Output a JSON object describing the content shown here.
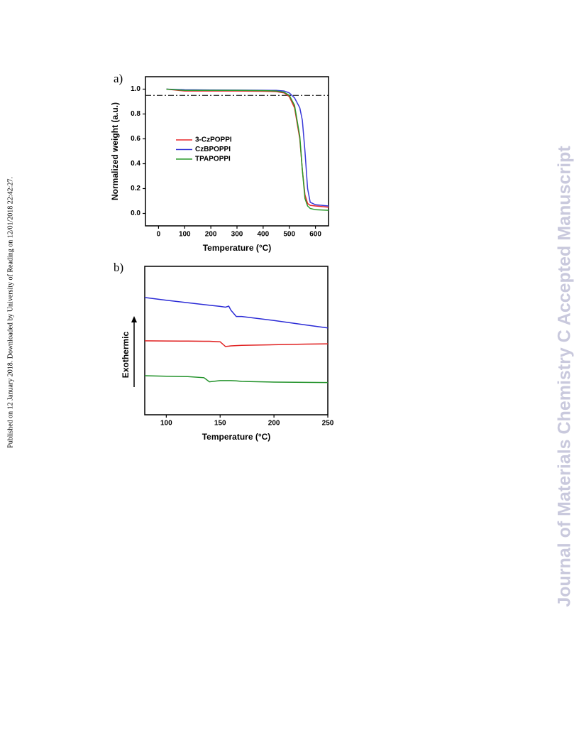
{
  "side_note": "Published on 12 January 2018. Downloaded by University of Reading on 12/01/2018 22:42:27.",
  "watermark": "Journal of Materials Chemistry C Accepted Manuscript",
  "chart_data": [
    {
      "type": "line",
      "panel": "a)",
      "x_label": "Temperature (°C)",
      "y_label": "Normalized weight (a.u.)",
      "xlim": [
        -50,
        650
      ],
      "xticks": [
        0,
        100,
        200,
        300,
        400,
        500,
        600
      ],
      "ylim": [
        -0.1,
        1.1
      ],
      "yticks": [
        {
          "value": 0,
          "label": "0.0"
        },
        {
          "value": 0.2,
          "label": "0.2"
        },
        {
          "value": 0.4,
          "label": "0.4"
        },
        {
          "value": 0.6,
          "label": "0.6"
        },
        {
          "value": 0.8,
          "label": "0.8"
        },
        {
          "value": 1,
          "label": "1.0"
        }
      ],
      "hline": 0.95,
      "x": [
        30,
        100,
        200,
        300,
        400,
        450,
        480,
        500,
        520,
        540,
        550,
        560,
        570,
        580,
        600,
        650
      ],
      "series": [
        {
          "name": "3-CzPOPPI",
          "color": "#e8262a",
          "values": [
            1.0,
            0.985,
            0.985,
            0.985,
            0.983,
            0.98,
            0.97,
            0.94,
            0.85,
            0.6,
            0.35,
            0.15,
            0.08,
            0.065,
            0.06,
            0.05
          ]
        },
        {
          "name": "CzBPOPPI",
          "color": "#3a3ad8",
          "values": [
            1.0,
            0.995,
            0.993,
            0.992,
            0.991,
            0.99,
            0.985,
            0.97,
            0.93,
            0.85,
            0.75,
            0.5,
            0.2,
            0.09,
            0.07,
            0.06
          ]
        },
        {
          "name": "TPAPOPPI",
          "color": "#2a9a2a",
          "values": [
            1.0,
            0.99,
            0.99,
            0.99,
            0.988,
            0.985,
            0.975,
            0.95,
            0.87,
            0.62,
            0.35,
            0.12,
            0.06,
            0.04,
            0.03,
            0.025
          ]
        }
      ]
    },
    {
      "type": "line",
      "panel": "b)",
      "x_label": "Temperature (°C)",
      "y_label": "Exothermic",
      "xlim": [
        80,
        250
      ],
      "xticks": [
        100,
        150,
        200,
        250
      ],
      "ylim": [
        0,
        10
      ],
      "x": [
        80,
        100,
        120,
        135,
        140,
        150,
        155,
        158,
        160,
        165,
        170,
        200,
        230,
        250
      ],
      "series": [
        {
          "color": "#2b2bd6",
          "values": [
            7.9,
            7.72,
            7.55,
            7.42,
            7.38,
            7.3,
            7.25,
            7.32,
            7.05,
            6.62,
            6.62,
            6.35,
            6.05,
            5.85
          ]
        },
        {
          "color": "#e02020",
          "values": [
            4.98,
            4.97,
            4.96,
            4.95,
            4.95,
            4.92,
            4.6,
            4.62,
            4.64,
            4.66,
            4.68,
            4.72,
            4.76,
            4.78
          ]
        },
        {
          "color": "#22922a",
          "values": [
            2.63,
            2.6,
            2.57,
            2.5,
            2.22,
            2.3,
            2.3,
            2.3,
            2.3,
            2.28,
            2.25,
            2.2,
            2.18,
            2.17
          ]
        }
      ]
    }
  ]
}
